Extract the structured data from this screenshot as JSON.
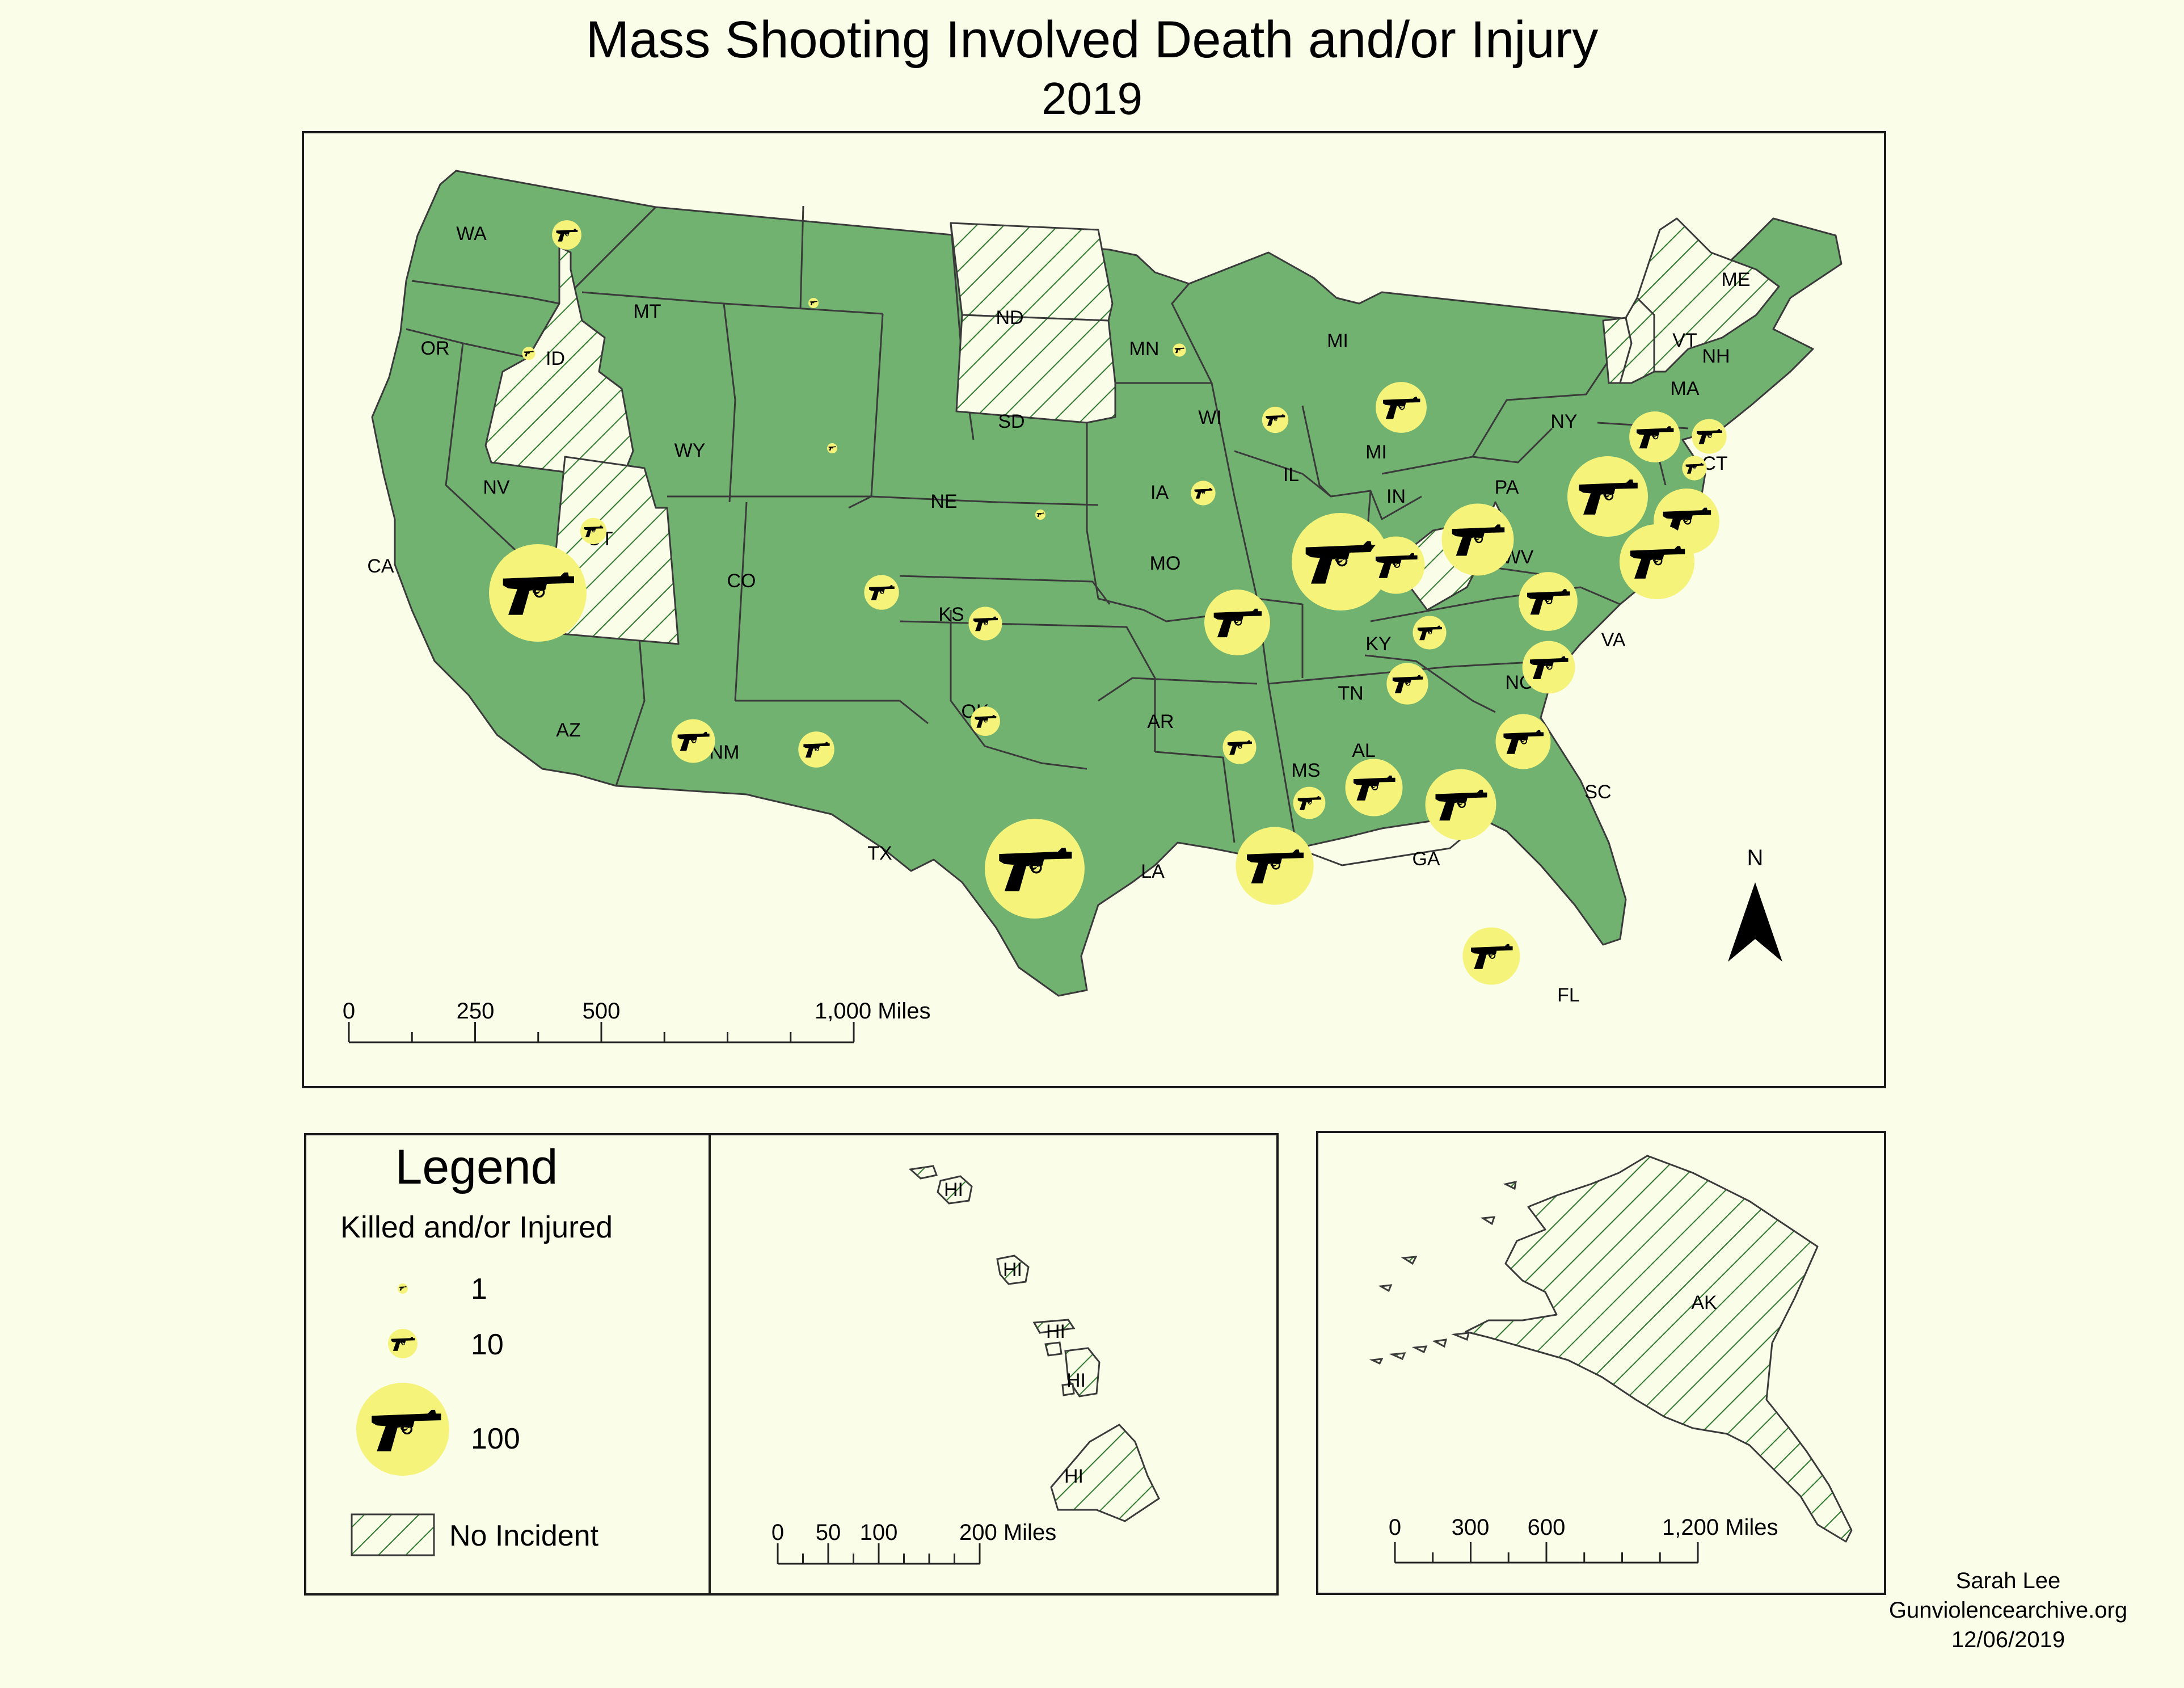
{
  "title": "Mass Shooting Involved Death and/or Injury",
  "subtitle": "2019",
  "colors": {
    "background": "#fafde8",
    "state_fill": "#71b271",
    "no_incident_hatch": "#2f7a2f",
    "bubble_fill": "#f5f37a",
    "gun_icon": "#000000"
  },
  "icons": {
    "bubble_symbol": "revolver-icon",
    "north_arrow": "north-arrow-icon"
  },
  "main_map": {
    "scale_bar": {
      "labels": [
        "0",
        "250",
        "500",
        "1,000 Miles"
      ]
    },
    "north_label": "N"
  },
  "chart_data": {
    "type": "map",
    "measure": "Killed and/or Injured",
    "states_with_incidents": [
      {
        "state": "WA",
        "magnitude": 10
      },
      {
        "state": "OR",
        "magnitude": 2
      },
      {
        "state": "CA",
        "magnitude": 110
      },
      {
        "state": "NV",
        "magnitude": 8
      },
      {
        "state": "MT",
        "magnitude": 1
      },
      {
        "state": "WY",
        "magnitude": 1
      },
      {
        "state": "CO",
        "magnitude": 14
      },
      {
        "state": "AZ",
        "magnitude": 22
      },
      {
        "state": "NM",
        "magnitude": 15
      },
      {
        "state": "TX",
        "magnitude": 115
      },
      {
        "state": "OK",
        "magnitude": 10
      },
      {
        "state": "KS",
        "magnitude": 13
      },
      {
        "state": "NE",
        "magnitude": 1
      },
      {
        "state": "MN",
        "magnitude": 2
      },
      {
        "state": "IA",
        "magnitude": 7
      },
      {
        "state": "MO",
        "magnitude": 50
      },
      {
        "state": "AR",
        "magnitude": 13
      },
      {
        "state": "LA",
        "magnitude": 70
      },
      {
        "state": "MS",
        "magnitude": 12
      },
      {
        "state": "AL",
        "magnitude": 38
      },
      {
        "state": "TN",
        "magnitude": 20
      },
      {
        "state": "KY",
        "magnitude": 13
      },
      {
        "state": "IL",
        "magnitude": 110
      },
      {
        "state": "IN",
        "magnitude": 38
      },
      {
        "state": "OH",
        "magnitude": 60
      },
      {
        "state": "WI",
        "magnitude": 8
      },
      {
        "state": "MI",
        "magnitude": 30
      },
      {
        "state": "GA",
        "magnitude": 58
      },
      {
        "state": "FL",
        "magnitude": 38
      },
      {
        "state": "SC",
        "magnitude": 35
      },
      {
        "state": "NC",
        "magnitude": 32
      },
      {
        "state": "VA",
        "magnitude": 40
      },
      {
        "state": "PA",
        "magnitude": 75
      },
      {
        "state": "NY",
        "magnitude": 30
      },
      {
        "state": "NJ",
        "magnitude": 50
      },
      {
        "state": "MD",
        "magnitude": 65
      },
      {
        "state": "MA",
        "magnitude": 14
      },
      {
        "state": "CT",
        "magnitude": 7
      }
    ],
    "no_incident_states": [
      "ID",
      "UT",
      "ND",
      "SD",
      "WV",
      "VT",
      "NH",
      "ME",
      "AK",
      "HI"
    ]
  },
  "state_labels": [
    "WA",
    "OR",
    "CA",
    "NV",
    "ID",
    "MT",
    "WY",
    "UT",
    "CO",
    "AZ",
    "NM",
    "ND",
    "SD",
    "NE",
    "KS",
    "OK",
    "TX",
    "MN",
    "IA",
    "MO",
    "AR",
    "LA",
    "WI",
    "IL",
    "MI",
    "MI",
    "IN",
    "OH",
    "KY",
    "TN",
    "MS",
    "AL",
    "GA",
    "FL",
    "SC",
    "NC",
    "VA",
    "WV",
    "PA",
    "NY",
    "VT",
    "NH",
    "ME",
    "MA",
    "CT"
  ],
  "legend": {
    "title": "Legend",
    "subtitle": "Killed and/or Injured",
    "items": [
      {
        "label": "1",
        "value": 1
      },
      {
        "label": "10",
        "value": 10
      },
      {
        "label": "100",
        "value": 100
      }
    ],
    "no_incident_label": "No Incident"
  },
  "hawaii_inset": {
    "labels": [
      "HI",
      "HI",
      "HI",
      "HI",
      "HI"
    ],
    "scale_bar": {
      "labels": [
        "0",
        "50",
        "100",
        "200 Miles"
      ]
    }
  },
  "alaska_inset": {
    "label": "AK",
    "scale_bar": {
      "labels": [
        "0",
        "300",
        "600",
        "1,200 Miles"
      ]
    }
  },
  "credits": {
    "author": "Sarah Lee",
    "source": "Gunviolencearchive.org",
    "date": "12/06/2019"
  }
}
